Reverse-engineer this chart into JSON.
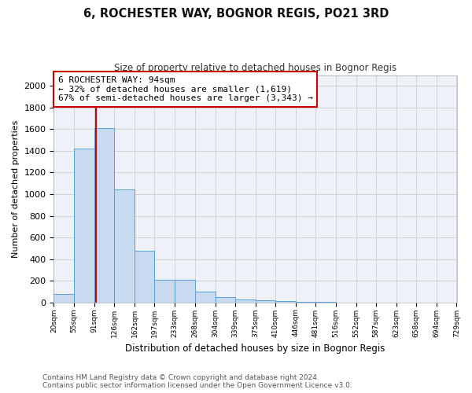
{
  "title": "6, ROCHESTER WAY, BOGNOR REGIS, PO21 3RD",
  "subtitle": "Size of property relative to detached houses in Bognor Regis",
  "xlabel": "Distribution of detached houses by size in Bognor Regis",
  "ylabel": "Number of detached properties",
  "bar_values": [
    80,
    1420,
    1610,
    1045,
    480,
    205,
    205,
    100,
    45,
    30,
    20,
    15,
    5,
    2,
    1,
    1,
    0,
    0,
    0,
    0
  ],
  "bin_labels": [
    "20sqm",
    "55sqm",
    "91sqm",
    "126sqm",
    "162sqm",
    "197sqm",
    "233sqm",
    "268sqm",
    "304sqm",
    "339sqm",
    "375sqm",
    "410sqm",
    "446sqm",
    "481sqm",
    "516sqm",
    "552sqm",
    "587sqm",
    "623sqm",
    "658sqm",
    "694sqm",
    "729sqm"
  ],
  "bin_edges": [
    20,
    55,
    91,
    126,
    162,
    197,
    233,
    268,
    304,
    339,
    375,
    410,
    446,
    481,
    516,
    552,
    587,
    623,
    658,
    694,
    729
  ],
  "bar_color": "#c8daf0",
  "bar_edge_color": "#5a9fd4",
  "red_line_x": 94,
  "red_line_color": "#cc0000",
  "annotation_title": "6 ROCHESTER WAY: 94sqm",
  "annotation_line1": "← 32% of detached houses are smaller (1,619)",
  "annotation_line2": "67% of semi-detached houses are larger (3,343) →",
  "annotation_box_color": "#cc0000",
  "ylim": [
    0,
    2100
  ],
  "yticks": [
    0,
    200,
    400,
    600,
    800,
    1000,
    1200,
    1400,
    1600,
    1800,
    2000
  ],
  "grid_color": "#cccccc",
  "bg_color": "#eef2f8",
  "footer_line1": "Contains HM Land Registry data © Crown copyright and database right 2024.",
  "footer_line2": "Contains public sector information licensed under the Open Government Licence v3.0."
}
